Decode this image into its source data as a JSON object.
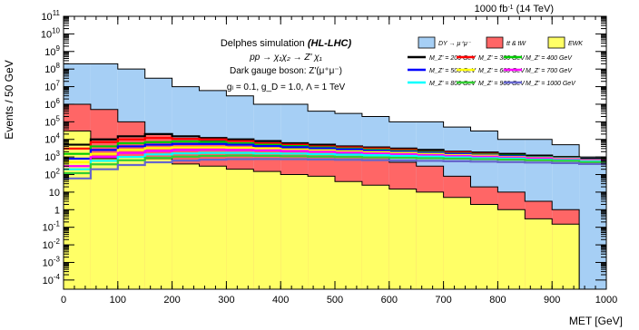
{
  "chart_data": {
    "type": "bar",
    "style": "stacked-step-histogram",
    "xlabel": "MET [GeV]",
    "ylabel": "Events / 50 GeV",
    "top_label": "1000 fb",
    "top_label_sup": "-1",
    "top_label_suffix": " (14 TeV)",
    "xlim": [
      0,
      1000
    ],
    "ylim": [
      3e-05,
      100000000000
    ],
    "log_y": true,
    "grid": false,
    "x_ticks": [
      "0",
      "100",
      "200",
      "300",
      "400",
      "500",
      "600",
      "700",
      "800",
      "900",
      "1000"
    ],
    "y_ticks": [
      {
        "base": "10",
        "exp": "-4"
      },
      {
        "base": "10",
        "exp": "-3"
      },
      {
        "base": "10",
        "exp": "-2"
      },
      {
        "base": "10",
        "exp": "-1"
      },
      {
        "base": "1",
        "exp": ""
      },
      {
        "base": "10",
        "exp": ""
      },
      {
        "base": "10",
        "exp": "2"
      },
      {
        "base": "10",
        "exp": "3"
      },
      {
        "base": "10",
        "exp": "4"
      },
      {
        "base": "10",
        "exp": "5"
      },
      {
        "base": "10",
        "exp": "6"
      },
      {
        "base": "10",
        "exp": "7"
      },
      {
        "base": "10",
        "exp": "8"
      },
      {
        "base": "10",
        "exp": "9"
      },
      {
        "base": "10",
        "exp": "10"
      },
      {
        "base": "10",
        "exp": "11"
      }
    ],
    "bin_edges": [
      0,
      50,
      100,
      150,
      200,
      250,
      300,
      350,
      400,
      450,
      500,
      550,
      600,
      650,
      700,
      750,
      800,
      850,
      900,
      950,
      1000
    ],
    "backgrounds_stacked_cumulative": [
      {
        "name": "EWK",
        "color": "#ffff66",
        "values": [
          30000,
          800,
          1000,
          800,
          400,
          300,
          200,
          150,
          100,
          80,
          40,
          25,
          15,
          10,
          5,
          2,
          1,
          0.3,
          0.15,
          1e-05
        ]
      },
      {
        "name": "tt & tW",
        "color": "#ff6666",
        "values": [
          1000000,
          500000,
          100000,
          20000,
          10000,
          8000,
          6000,
          4000,
          3000,
          2000,
          1500,
          1000,
          500,
          300,
          80,
          20,
          10,
          3,
          1,
          1e-05
        ]
      },
      {
        "name": "DY",
        "color": "#a6cff5",
        "values": [
          200000000,
          200000000,
          100000000,
          30000000,
          10000000,
          6000000,
          3000000,
          1000000,
          1000000,
          400000,
          300000,
          200000,
          100000,
          100000,
          50000,
          30000,
          10000,
          10000,
          5000,
          1000
        ]
      }
    ],
    "signals": [
      {
        "name": "M_Z' = 200 GeV",
        "color": "#000000",
        "values": [
          5000,
          10000,
          15000,
          20000,
          15000,
          12000,
          10000,
          8000,
          6000,
          5000,
          4000,
          3500,
          3000,
          2500,
          2000,
          1800,
          1500,
          1200,
          1000,
          800
        ]
      },
      {
        "name": "M_Z' = 300 GeV",
        "color": "#ff0000",
        "values": [
          3000,
          7000,
          10000,
          12000,
          11000,
          10000,
          8000,
          6000,
          5000,
          4000,
          3500,
          3000,
          2500,
          2000,
          1800,
          1500,
          1200,
          1000,
          900,
          700
        ]
      },
      {
        "name": "M_Z' = 400 GeV",
        "color": "#00cc00",
        "values": [
          1500,
          4000,
          6000,
          7000,
          7500,
          7000,
          6000,
          5000,
          4200,
          3500,
          3000,
          2600,
          2200,
          1900,
          1600,
          1400,
          1200,
          1000,
          900,
          700
        ]
      },
      {
        "name": "M_Z' = 500 GeV",
        "color": "#0000ff",
        "values": [
          800,
          2500,
          4000,
          5000,
          5500,
          5500,
          5000,
          4200,
          3600,
          3100,
          2700,
          2300,
          2000,
          1700,
          1500,
          1300,
          1100,
          950,
          850,
          700
        ]
      },
      {
        "name": "M_Z' = 600 GeV",
        "color": "#ffff00",
        "values": [
          500,
          1500,
          2500,
          3200,
          3500,
          3500,
          3300,
          3000,
          2700,
          2400,
          2100,
          1900,
          1700,
          1500,
          1300,
          1200,
          1000,
          900,
          800,
          650
        ]
      },
      {
        "name": "M_Z' = 700 GeV",
        "color": "#ff00ff",
        "values": [
          300,
          1000,
          1700,
          2200,
          2500,
          2600,
          2500,
          2400,
          2200,
          2000,
          1800,
          1600,
          1450,
          1300,
          1150,
          1050,
          950,
          850,
          750,
          600
        ]
      },
      {
        "name": "M_Z' = 800 GeV",
        "color": "#00ffff",
        "values": [
          200,
          600,
          1000,
          1400,
          1600,
          1700,
          1700,
          1600,
          1550,
          1450,
          1350,
          1250,
          1150,
          1050,
          950,
          850,
          800,
          700,
          650,
          550
        ]
      },
      {
        "name": "M_Z' = 900 GeV",
        "color": "#33cc33",
        "values": [
          120,
          380,
          650,
          900,
          1050,
          1150,
          1200,
          1150,
          1100,
          1050,
          1000,
          950,
          900,
          850,
          800,
          750,
          700,
          650,
          600,
          500
        ]
      },
      {
        "name": "M_Z' = 1000 GeV",
        "color": "#6666cc",
        "values": [
          60,
          200,
          350,
          500,
          620,
          700,
          750,
          760,
          750,
          720,
          690,
          660,
          630,
          600,
          570,
          540,
          510,
          480,
          450,
          400
        ]
      }
    ],
    "annotations": {
      "line1_plain": "Delphes simulation ",
      "line1_bold": "(HL-LHC)",
      "line2": "pp → χ₁χ₂ → Z' χ₁",
      "line3": "Dark gauge boson: Z'(μ⁺μ⁻)",
      "line4": "gₗ = 0.1, g_D = 1.0, Λ = 1 TeV"
    },
    "legend_placement": "top-right",
    "legend_boxes": [
      {
        "label": "DY → μ⁺μ⁻",
        "color": "#a6cff5"
      },
      {
        "label": "tt & tW",
        "color": "#ff6666"
      },
      {
        "label": "EWK",
        "color": "#ffff66"
      }
    ]
  }
}
